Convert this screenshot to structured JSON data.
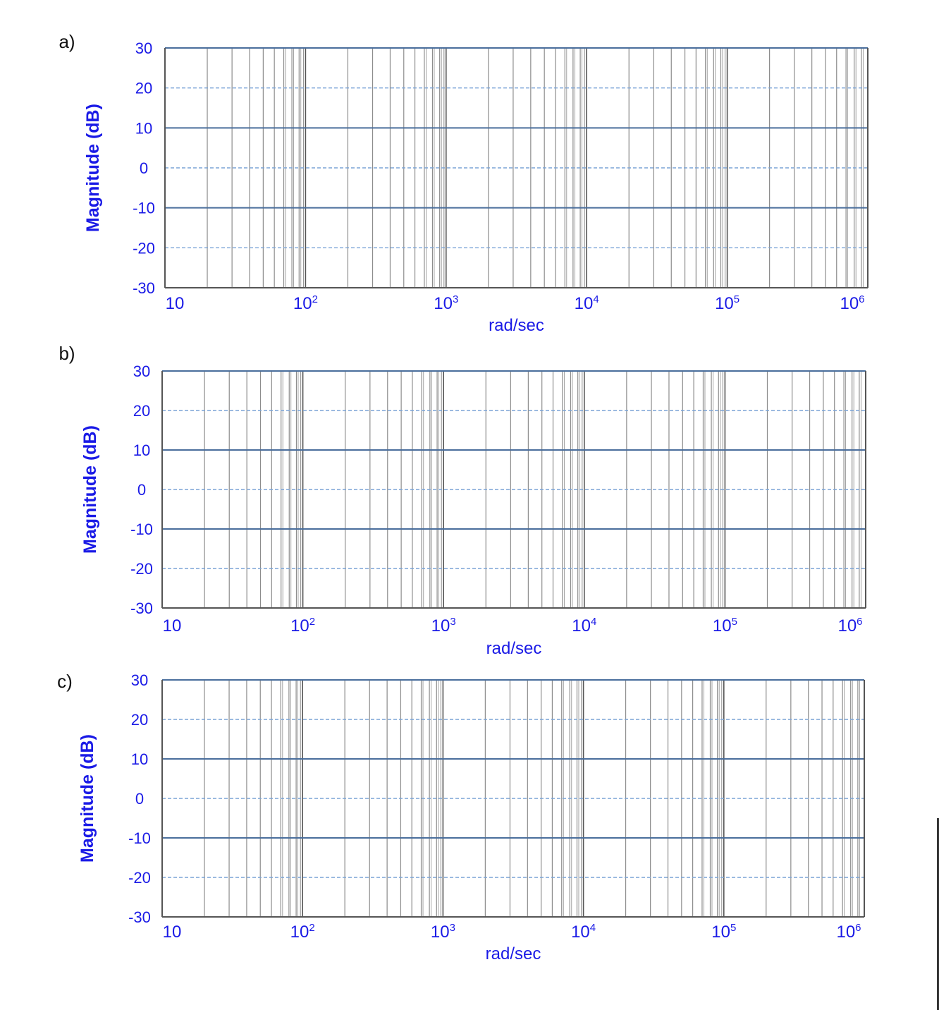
{
  "colors": {
    "axis_label": "#1a1ae6",
    "tick_text": "#1a1ae6",
    "grid_major_h": "#4a6e9c",
    "grid_minor_h": "#7aa3d6",
    "grid_v": "#8c8c8c",
    "grid_v_decade": "#555555",
    "frame": "#555555",
    "plot_border_top": "#4a6e9c"
  },
  "chart_data": [
    {
      "panel_label": "a)",
      "type": "line",
      "xscale": "log",
      "xlim": [
        10,
        1000000
      ],
      "ylim": [
        -30,
        30
      ],
      "xlabel": "rad/sec",
      "ylabel": "Magnitude (dB)",
      "yticks": [
        "30",
        "20",
        "10",
        "0",
        "-10",
        "-20",
        "-30"
      ],
      "xticks": [
        {
          "base": "10",
          "exp": ""
        },
        {
          "base": "10",
          "exp": "2"
        },
        {
          "base": "10",
          "exp": "3"
        },
        {
          "base": "10",
          "exp": "4"
        },
        {
          "base": "10",
          "exp": "5"
        },
        {
          "base": "10",
          "exp": "6"
        }
      ],
      "grid": true,
      "series": []
    },
    {
      "panel_label": "b)",
      "type": "line",
      "xscale": "log",
      "xlim": [
        10,
        1000000
      ],
      "ylim": [
        -30,
        30
      ],
      "xlabel": "rad/sec",
      "ylabel": "Magnitude (dB)",
      "yticks": [
        "30",
        "20",
        "10",
        "0",
        "-10",
        "-20",
        "-30"
      ],
      "xticks": [
        {
          "base": "10",
          "exp": ""
        },
        {
          "base": "10",
          "exp": "2"
        },
        {
          "base": "10",
          "exp": "3"
        },
        {
          "base": "10",
          "exp": "4"
        },
        {
          "base": "10",
          "exp": "5"
        },
        {
          "base": "10",
          "exp": "6"
        }
      ],
      "grid": true,
      "series": []
    },
    {
      "panel_label": "c)",
      "type": "line",
      "xscale": "log",
      "xlim": [
        10,
        1000000
      ],
      "ylim": [
        -30,
        30
      ],
      "xlabel": "rad/sec",
      "ylabel": "Magnitude (dB)",
      "yticks": [
        "30",
        "20",
        "10",
        "0",
        "-10",
        "-20",
        "-30"
      ],
      "xticks": [
        {
          "base": "10",
          "exp": ""
        },
        {
          "base": "10",
          "exp": "2"
        },
        {
          "base": "10",
          "exp": "3"
        },
        {
          "base": "10",
          "exp": "4"
        },
        {
          "base": "10",
          "exp": "5"
        },
        {
          "base": "10",
          "exp": "6"
        }
      ],
      "grid": true,
      "series": []
    }
  ]
}
